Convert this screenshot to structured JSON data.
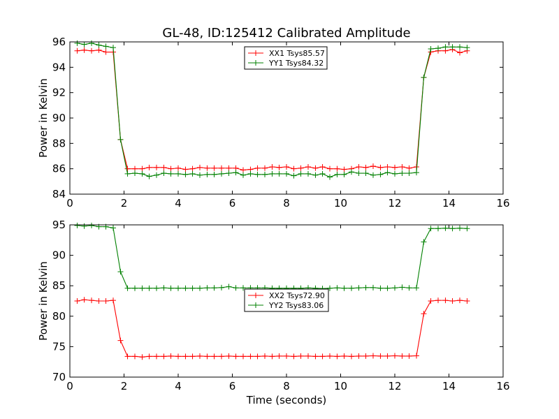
{
  "figure": {
    "title": "GL-48, ID:125412 Calibrated Amplitude",
    "xlabel": "Time (seconds)"
  },
  "chart_data": [
    {
      "type": "line",
      "title": "GL-48, ID:125412 Calibrated Amplitude",
      "xlabel": "",
      "ylabel": "Power in Kelvin",
      "xlim": [
        0,
        16
      ],
      "ylim": [
        84,
        96
      ],
      "xticks": [
        0,
        2,
        4,
        6,
        8,
        10,
        12,
        14,
        16
      ],
      "yticks": [
        84,
        86,
        88,
        90,
        92,
        94,
        96
      ],
      "grid": false,
      "legend_position": "top-center",
      "x": [
        0.27,
        0.53,
        0.8,
        1.07,
        1.33,
        1.6,
        1.87,
        2.13,
        2.4,
        2.67,
        2.93,
        3.2,
        3.47,
        3.73,
        4.0,
        4.27,
        4.53,
        4.8,
        5.07,
        5.33,
        5.6,
        5.87,
        6.13,
        6.4,
        6.67,
        6.93,
        7.2,
        7.47,
        7.73,
        8.0,
        8.27,
        8.53,
        8.8,
        9.07,
        9.33,
        9.6,
        9.87,
        10.13,
        10.4,
        10.67,
        10.93,
        11.2,
        11.47,
        11.73,
        12.0,
        12.27,
        12.53,
        12.8,
        13.07,
        13.33,
        13.6,
        13.87,
        14.13,
        14.4,
        14.67
      ],
      "series": [
        {
          "name": "XX1 Tsys85.57",
          "color": "#ff0000",
          "values": [
            95.3,
            95.35,
            95.3,
            95.35,
            95.2,
            95.2,
            88.3,
            86.0,
            86.0,
            86.0,
            86.1,
            86.1,
            86.1,
            86.0,
            86.05,
            85.95,
            86.0,
            86.1,
            86.05,
            86.05,
            86.05,
            86.05,
            86.05,
            85.9,
            85.95,
            86.05,
            86.05,
            86.15,
            86.1,
            86.15,
            86.0,
            86.05,
            86.15,
            86.05,
            86.15,
            86.0,
            86.0,
            85.95,
            86.0,
            86.15,
            86.1,
            86.2,
            86.1,
            86.15,
            86.1,
            86.15,
            86.05,
            86.15,
            93.2,
            95.2,
            95.3,
            95.3,
            95.4,
            95.15,
            95.3
          ]
        },
        {
          "name": "YY1 Tsys84.32",
          "color": "#008000",
          "values": [
            95.9,
            95.8,
            95.9,
            95.75,
            95.65,
            95.55,
            88.3,
            85.6,
            85.65,
            85.6,
            85.4,
            85.5,
            85.65,
            85.6,
            85.6,
            85.55,
            85.6,
            85.5,
            85.55,
            85.55,
            85.6,
            85.65,
            85.7,
            85.5,
            85.6,
            85.55,
            85.55,
            85.6,
            85.6,
            85.6,
            85.45,
            85.6,
            85.6,
            85.5,
            85.6,
            85.35,
            85.55,
            85.55,
            85.75,
            85.65,
            85.65,
            85.5,
            85.55,
            85.7,
            85.6,
            85.65,
            85.65,
            85.7,
            93.2,
            95.45,
            95.5,
            95.6,
            95.6,
            95.6,
            95.55
          ]
        }
      ]
    },
    {
      "type": "line",
      "title": "",
      "xlabel": "Time (seconds)",
      "ylabel": "Power in Kelvin",
      "xlim": [
        0,
        16
      ],
      "ylim": [
        70,
        95
      ],
      "xticks": [
        0,
        2,
        4,
        6,
        8,
        10,
        12,
        14,
        16
      ],
      "yticks": [
        70,
        75,
        80,
        85,
        90,
        95
      ],
      "grid": false,
      "legend_position": "center",
      "x": [
        0.27,
        0.53,
        0.8,
        1.07,
        1.33,
        1.6,
        1.87,
        2.13,
        2.4,
        2.67,
        2.93,
        3.2,
        3.47,
        3.73,
        4.0,
        4.27,
        4.53,
        4.8,
        5.07,
        5.33,
        5.6,
        5.87,
        6.13,
        6.4,
        6.67,
        6.93,
        7.2,
        7.47,
        7.73,
        8.0,
        8.27,
        8.53,
        8.8,
        9.07,
        9.33,
        9.6,
        9.87,
        10.13,
        10.4,
        10.67,
        10.93,
        11.2,
        11.47,
        11.73,
        12.0,
        12.27,
        12.53,
        12.8,
        13.07,
        13.33,
        13.6,
        13.87,
        14.13,
        14.4,
        14.67
      ],
      "series": [
        {
          "name": "XX2 Tsys72.90",
          "color": "#ff0000",
          "values": [
            82.5,
            82.7,
            82.6,
            82.5,
            82.5,
            82.6,
            76.0,
            73.4,
            73.4,
            73.3,
            73.4,
            73.4,
            73.4,
            73.45,
            73.4,
            73.4,
            73.4,
            73.45,
            73.4,
            73.4,
            73.4,
            73.45,
            73.4,
            73.4,
            73.4,
            73.4,
            73.45,
            73.4,
            73.45,
            73.45,
            73.4,
            73.45,
            73.45,
            73.4,
            73.4,
            73.45,
            73.4,
            73.45,
            73.4,
            73.45,
            73.45,
            73.5,
            73.45,
            73.45,
            73.5,
            73.45,
            73.45,
            73.5,
            80.4,
            82.5,
            82.6,
            82.6,
            82.5,
            82.6,
            82.5
          ]
        },
        {
          "name": "YY2 Tsys83.06",
          "color": "#008000",
          "values": [
            94.9,
            94.8,
            94.9,
            94.7,
            94.7,
            94.5,
            87.3,
            84.6,
            84.6,
            84.6,
            84.6,
            84.6,
            84.65,
            84.6,
            84.6,
            84.6,
            84.6,
            84.6,
            84.65,
            84.65,
            84.7,
            84.85,
            84.65,
            84.65,
            84.65,
            84.65,
            84.65,
            84.6,
            84.6,
            84.6,
            84.6,
            84.6,
            84.65,
            84.6,
            84.55,
            84.6,
            84.65,
            84.6,
            84.6,
            84.65,
            84.7,
            84.7,
            84.6,
            84.6,
            84.65,
            84.75,
            84.65,
            84.65,
            92.2,
            94.4,
            94.4,
            94.45,
            94.4,
            94.45,
            94.4
          ]
        }
      ]
    }
  ]
}
